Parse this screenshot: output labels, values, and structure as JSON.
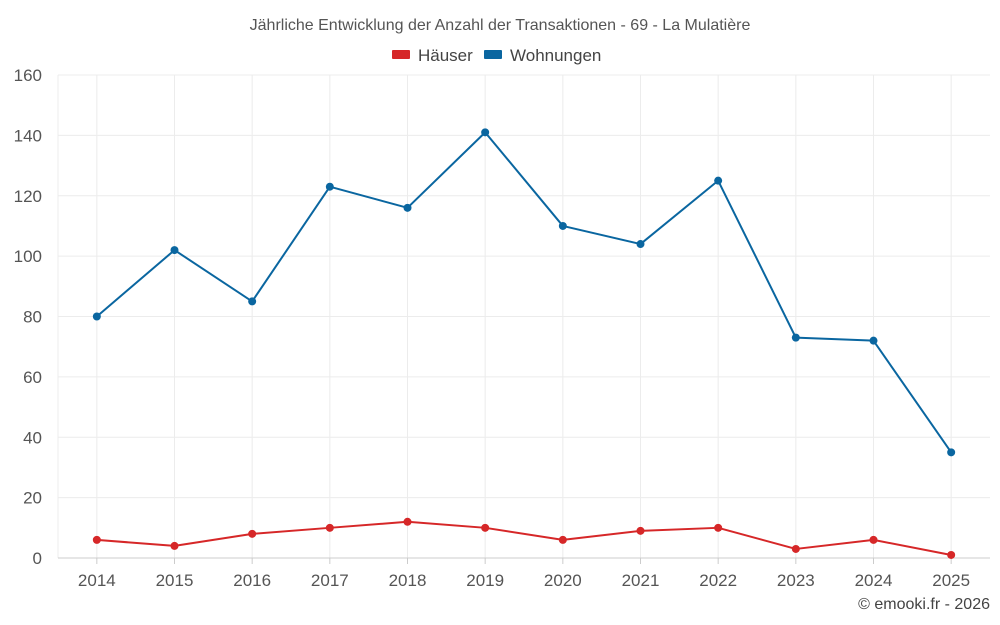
{
  "chart_data": {
    "type": "line",
    "title": "Jährliche Entwicklung der Anzahl der Transaktionen - 69 - La Mulatière",
    "x": [
      "2014",
      "2015",
      "2016",
      "2017",
      "2018",
      "2019",
      "2020",
      "2021",
      "2022",
      "2023",
      "2024",
      "2025"
    ],
    "series": [
      {
        "name": "Häuser",
        "color": "#d62728",
        "values": [
          6,
          4,
          8,
          10,
          12,
          10,
          6,
          9,
          10,
          3,
          6,
          1
        ]
      },
      {
        "name": "Wohnungen",
        "color": "#0a66a0",
        "values": [
          80,
          102,
          85,
          123,
          116,
          141,
          110,
          104,
          125,
          73,
          72,
          35
        ]
      }
    ],
    "ylim": [
      0,
      160
    ],
    "yticks": [
      0,
      20,
      40,
      60,
      80,
      100,
      120,
      140,
      160
    ],
    "xlabel": "",
    "ylabel": "",
    "grid": true,
    "legend": "top-center"
  },
  "credit": "© emooki.fr - 2026"
}
